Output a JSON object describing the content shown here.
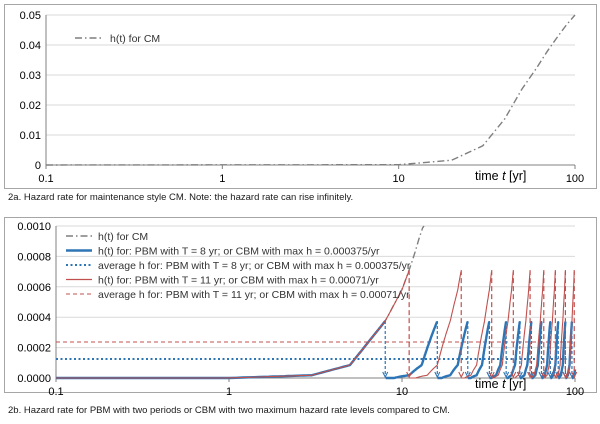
{
  "chart_data": [
    {
      "type": "line",
      "x_scale": "log",
      "xlim": [
        0.1,
        100
      ],
      "ylim": [
        0,
        0.05
      ],
      "x_ticks": [
        "0.1",
        "1",
        "10",
        "100"
      ],
      "y_ticks": [
        "0",
        "0.01",
        "0.02",
        "0.03",
        "0.04",
        "0.05"
      ],
      "xlabel_prefix": "time ",
      "xlabel_var": "t",
      "xlabel_suffix": " [yr]",
      "legend": [
        "h(t) for CM"
      ],
      "series": [
        {
          "name": "h(t) for CM",
          "style": "dash-dot",
          "color": "#7f7f7f",
          "points": [
            [
              0.1,
              0
            ],
            [
              10,
              0.0001
            ],
            [
              20,
              0.0016
            ],
            [
              30,
              0.0064
            ],
            [
              40,
              0.0154
            ],
            [
              50,
              0.0253
            ],
            [
              60,
              0.032
            ],
            [
              70,
              0.0381
            ],
            [
              80,
              0.0429
            ],
            [
              90,
              0.0469
            ],
            [
              100,
              0.05
            ]
          ]
        }
      ]
    },
    {
      "type": "line",
      "x_scale": "log",
      "xlim": [
        0.1,
        100
      ],
      "ylim": [
        0,
        0.001
      ],
      "x_ticks": [
        "0.1",
        "1",
        "10",
        "100"
      ],
      "y_ticks": [
        "0.0000",
        "0.0002",
        "0.0004",
        "0.0006",
        "0.0008",
        "0.0010"
      ],
      "xlabel_prefix": "time ",
      "xlabel_var": "t",
      "xlabel_suffix": " [yr]",
      "legend": [
        "h(t) for CM",
        "h(t) for: PBM with T = 8 yr; or CBM with max h = 0.000375/yr",
        "average h for: PBM with T = 8 yr; or CBM with max h = 0.000375/yr",
        "h(t) for: PBM with T = 11 yr; or CBM with max h = 0.00071/yr",
        "average h for: PBM with T = 11 yr; or CBM with max h = 0.00071/yr"
      ],
      "cm_curve": {
        "name": "h(t) for CM",
        "points": [
          [
            0.1,
            0
          ],
          [
            1,
            0
          ],
          [
            3,
            1.8e-05
          ],
          [
            5,
            8.5e-05
          ],
          [
            8,
            0.000375
          ],
          [
            10,
            0.00058
          ],
          [
            11,
            0.00071
          ],
          [
            12,
            0.00084
          ],
          [
            13,
            0.00098
          ],
          [
            13.4,
            0.001
          ]
        ]
      },
      "pbm_series": [
        {
          "name": "h(t) for: PBM with T = 8 yr; or CBM with max h = 0.000375/yr",
          "period": 8,
          "max_h": 0.000375,
          "average_h": 0.000125,
          "color": "#2e75b6"
        },
        {
          "name": "h(t) for: PBM with T = 11 yr; or CBM with max h = 0.00071/yr",
          "period": 11,
          "max_h": 0.00071,
          "average_h": 0.000237,
          "color": "#c0504d"
        }
      ]
    }
  ],
  "captions": {
    "fig2a": "2a. Hazard rate for maintenance style CM. Note: the hazard rate can rise infinitely.",
    "fig2b": "2b. Hazard rate for PBM with two periods or CBM with two maximum hazard rate levels compared to CM."
  }
}
